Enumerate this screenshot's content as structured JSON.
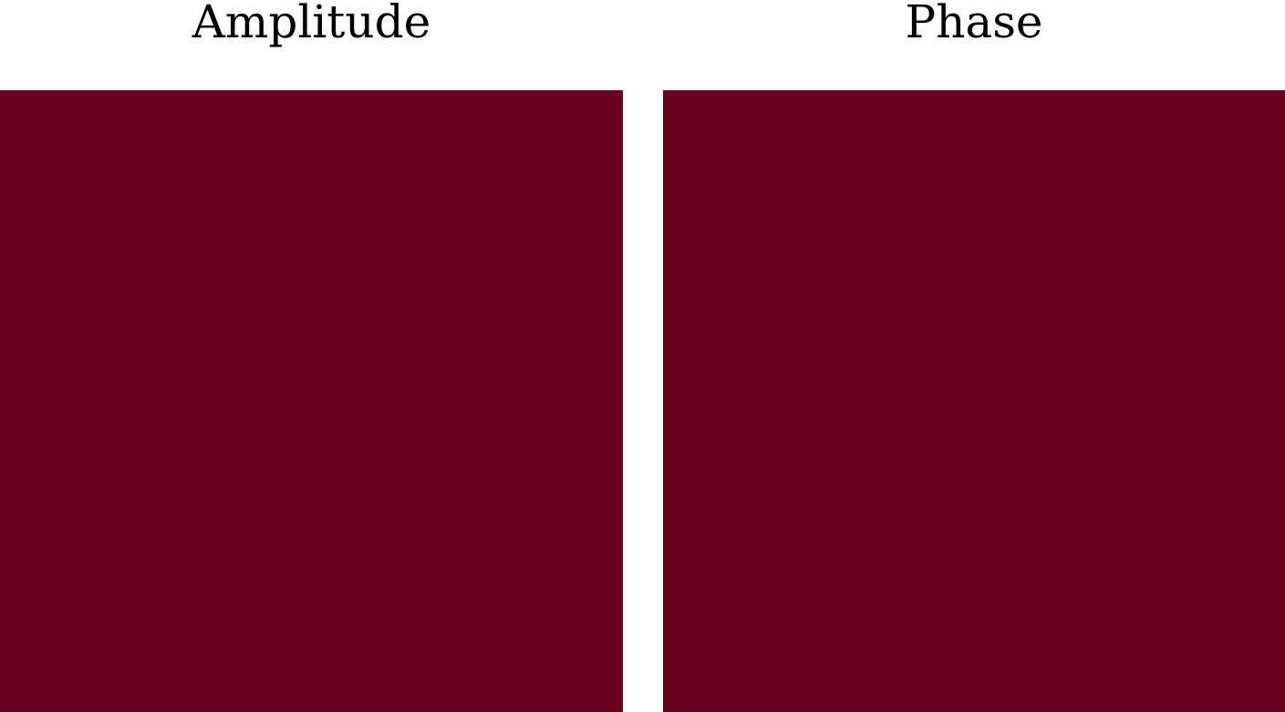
{
  "chart_data": [
    {
      "type": "heatmap",
      "title": "Amplitude",
      "colors": {
        "fill": "#670021"
      },
      "cells": [
        [
          1
        ]
      ]
    },
    {
      "type": "heatmap",
      "title": "Phase",
      "colors": {
        "fill": "#670021"
      },
      "cells": [
        [
          1
        ]
      ]
    }
  ]
}
